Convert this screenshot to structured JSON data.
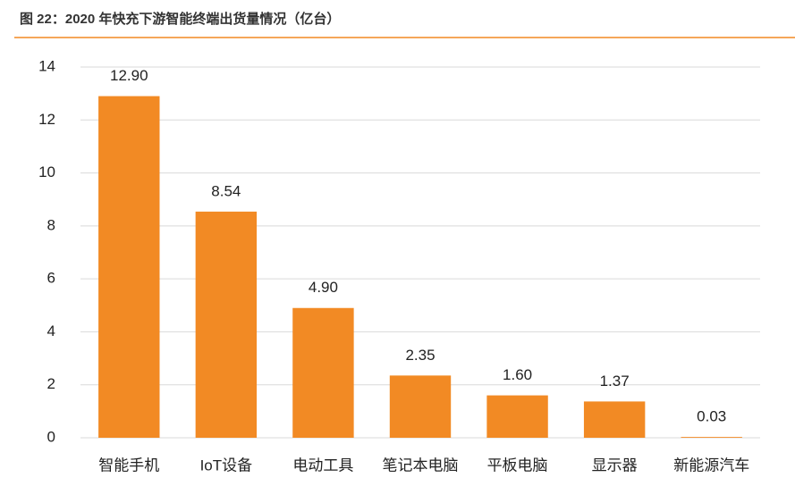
{
  "chart_data": {
    "type": "bar",
    "title": "图 22：2020 年快充下游智能终端出货量情况（亿台）",
    "categories": [
      "智能手机",
      "IoT设备",
      "电动工具",
      "笔记本电脑",
      "平板电脑",
      "显示器",
      "新能源汽车"
    ],
    "values": [
      12.9,
      8.54,
      4.9,
      2.35,
      1.6,
      1.37,
      0.03
    ],
    "value_labels": [
      "12.90",
      "8.54",
      "4.90",
      "2.35",
      "1.60",
      "1.37",
      "0.03"
    ],
    "color": "#f28a24",
    "ylim": [
      0,
      14
    ],
    "yticks": [
      0,
      2,
      4,
      6,
      8,
      10,
      12,
      14
    ],
    "grid": true
  }
}
